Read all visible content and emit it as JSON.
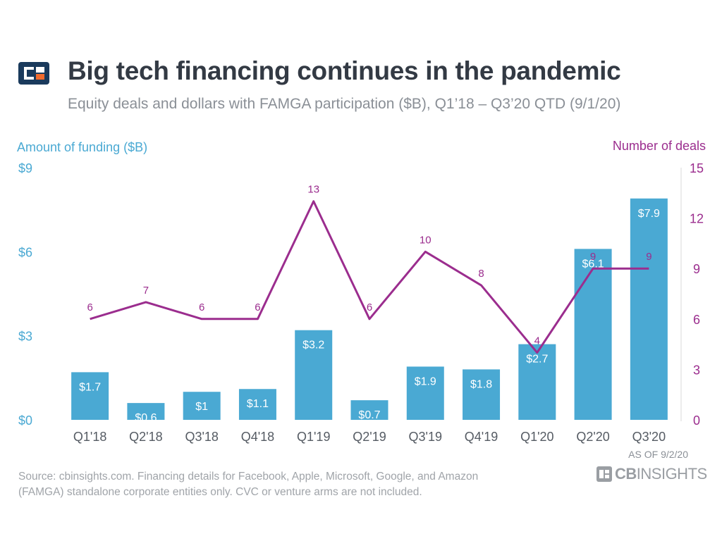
{
  "header": {
    "title": "Big tech financing continues in the pandemic",
    "subtitle": "Equity deals and dollars with FAMGA participation ($B), Q1’18 – Q3’20 QTD (9/1/20)"
  },
  "footer": {
    "source_line1": "Source: cbinsights.com. Financing details for Facebook, Apple, Microsoft, Google, and Amazon",
    "source_line2": "(FAMGA) standalone corporate entities only. CVC or venture arms are not included.",
    "as_of": "AS OF 9/2/20",
    "brand_bold": "CB",
    "brand_thin": "INSIGHTS"
  },
  "colors": {
    "bar": "#4aa9d3",
    "line": "#9b2d8e",
    "left_axis": "#4aa9d3",
    "right_axis": "#9b2d8e",
    "logo_navy": "#1a3a5c",
    "logo_orange": "#f26b2d"
  },
  "chart_data": {
    "type": "bar",
    "categories": [
      "Q1'18",
      "Q2'18",
      "Q3'18",
      "Q4'18",
      "Q1'19",
      "Q2'19",
      "Q3'19",
      "Q4'19",
      "Q1'20",
      "Q2'20",
      "Q3'20"
    ],
    "series": [
      {
        "name": "Amount of funding ($B)",
        "type": "bar",
        "axis": "left",
        "values": [
          1.7,
          0.6,
          1.0,
          1.1,
          3.2,
          0.7,
          1.9,
          1.8,
          2.7,
          6.1,
          7.9
        ],
        "labels": [
          "$1.7",
          "$0.6",
          "$1",
          "$1.1",
          "$3.2",
          "$0.7",
          "$1.9",
          "$1.8",
          "$2.7",
          "$6.1",
          "$7.9"
        ]
      },
      {
        "name": "Number of deals",
        "type": "line",
        "axis": "right",
        "values": [
          6,
          7,
          6,
          6,
          13,
          6,
          10,
          8,
          4,
          9,
          9
        ],
        "labels": [
          "6",
          "7",
          "6",
          "6",
          "13",
          "6",
          "10",
          "8",
          "4",
          "9",
          "9"
        ]
      }
    ],
    "ylabel_left": "Amount of funding ($B)",
    "ylabel_right": "Number of deals",
    "ylim_left": [
      0,
      9
    ],
    "ylim_right": [
      0,
      15
    ],
    "yticks_left": [
      "$0",
      "$3",
      "$6",
      "$9"
    ],
    "yticks_left_values": [
      0,
      3,
      6,
      9
    ],
    "yticks_right": [
      "0",
      "3",
      "6",
      "9",
      "12",
      "15"
    ],
    "yticks_right_values": [
      0,
      3,
      6,
      9,
      12,
      15
    ],
    "grid": false,
    "legend": "none"
  }
}
